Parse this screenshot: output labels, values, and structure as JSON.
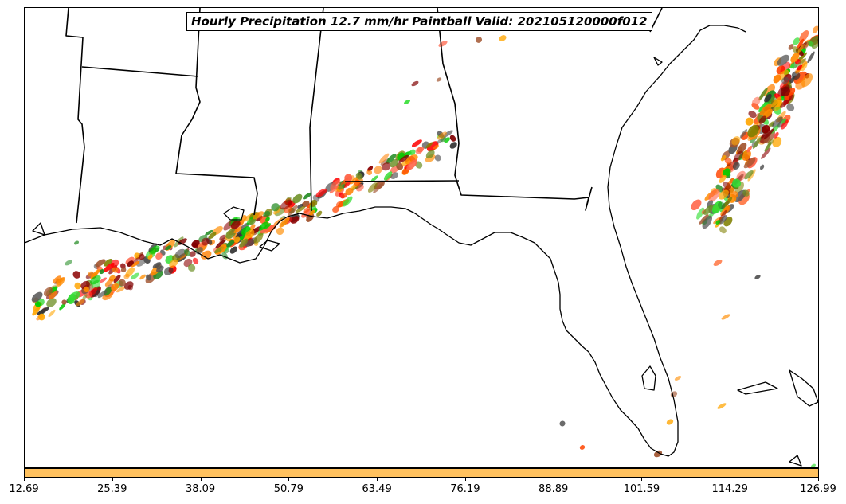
{
  "title": "Hourly Precipitation 12.7 mm/hr Paintball Valid: 202105120000f012",
  "colorbar": {
    "color": "#ffc15e",
    "ticks": [
      "12.69",
      "25.39",
      "38.09",
      "50.79",
      "63.49",
      "76.19",
      "88.89",
      "101.59",
      "114.29",
      "126.99"
    ]
  },
  "palette": [
    "#ff0000",
    "#ff7f00",
    "#ff8c00",
    "#ffa500",
    "#00cc00",
    "#33dd33",
    "#228b22",
    "#6b8e23",
    "#808000",
    "#8b0000",
    "#800000",
    "#a0522d",
    "#333333",
    "#555555",
    "#ff6347",
    "#ff4500"
  ]
}
